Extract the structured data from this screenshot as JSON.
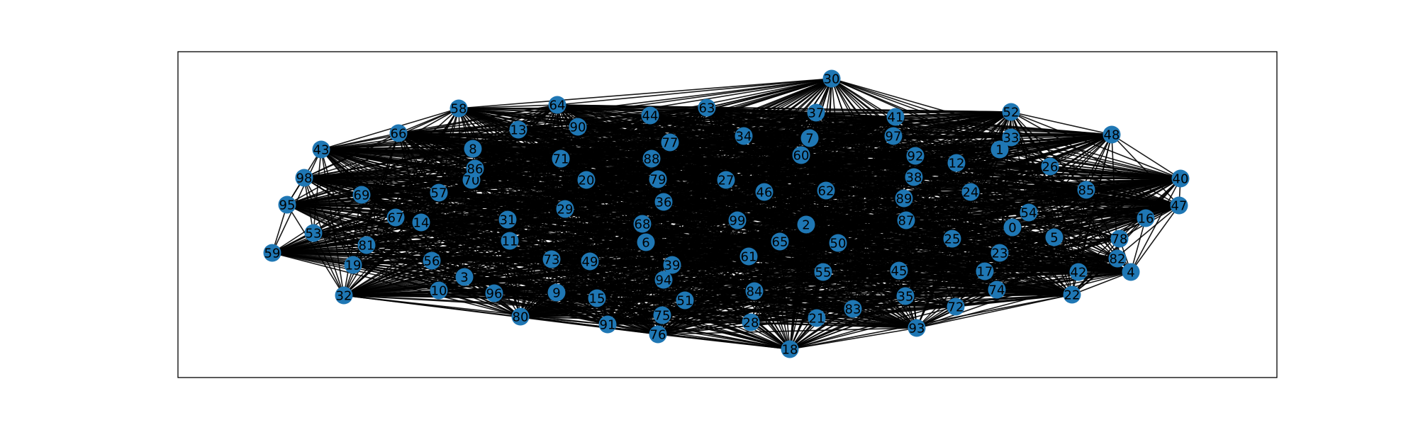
{
  "graph": {
    "type": "network",
    "node_color": "#1f77b4",
    "edge_color": "#000000",
    "label_color": "#000000",
    "nodes": [
      {
        "id": "0"
      },
      {
        "id": "1"
      },
      {
        "id": "2"
      },
      {
        "id": "3"
      },
      {
        "id": "4"
      },
      {
        "id": "5"
      },
      {
        "id": "6"
      },
      {
        "id": "7"
      },
      {
        "id": "8"
      },
      {
        "id": "9"
      },
      {
        "id": "10"
      },
      {
        "id": "11"
      },
      {
        "id": "12"
      },
      {
        "id": "13"
      },
      {
        "id": "14"
      },
      {
        "id": "15"
      },
      {
        "id": "16"
      },
      {
        "id": "17"
      },
      {
        "id": "18"
      },
      {
        "id": "19"
      },
      {
        "id": "20"
      },
      {
        "id": "21"
      },
      {
        "id": "22"
      },
      {
        "id": "23"
      },
      {
        "id": "24"
      },
      {
        "id": "25"
      },
      {
        "id": "26"
      },
      {
        "id": "27"
      },
      {
        "id": "28"
      },
      {
        "id": "29"
      },
      {
        "id": "30"
      },
      {
        "id": "31"
      },
      {
        "id": "32"
      },
      {
        "id": "33"
      },
      {
        "id": "34"
      },
      {
        "id": "35"
      },
      {
        "id": "36"
      },
      {
        "id": "37"
      },
      {
        "id": "38"
      },
      {
        "id": "39"
      },
      {
        "id": "40"
      },
      {
        "id": "41"
      },
      {
        "id": "42"
      },
      {
        "id": "43"
      },
      {
        "id": "44"
      },
      {
        "id": "45"
      },
      {
        "id": "46"
      },
      {
        "id": "47"
      },
      {
        "id": "48"
      },
      {
        "id": "49"
      },
      {
        "id": "50"
      },
      {
        "id": "51"
      },
      {
        "id": "52"
      },
      {
        "id": "53"
      },
      {
        "id": "54"
      },
      {
        "id": "55"
      },
      {
        "id": "56"
      },
      {
        "id": "57"
      },
      {
        "id": "58"
      },
      {
        "id": "59"
      },
      {
        "id": "60"
      },
      {
        "id": "61"
      },
      {
        "id": "62"
      },
      {
        "id": "63"
      },
      {
        "id": "64"
      },
      {
        "id": "65"
      },
      {
        "id": "66"
      },
      {
        "id": "67"
      },
      {
        "id": "68"
      },
      {
        "id": "69"
      },
      {
        "id": "70"
      },
      {
        "id": "71"
      },
      {
        "id": "72"
      },
      {
        "id": "73"
      },
      {
        "id": "74"
      },
      {
        "id": "75"
      },
      {
        "id": "76"
      },
      {
        "id": "77"
      },
      {
        "id": "78"
      },
      {
        "id": "79"
      },
      {
        "id": "80"
      },
      {
        "id": "81"
      },
      {
        "id": "82"
      },
      {
        "id": "83"
      },
      {
        "id": "84"
      },
      {
        "id": "85"
      },
      {
        "id": "86"
      },
      {
        "id": "87"
      },
      {
        "id": "88"
      },
      {
        "id": "89"
      },
      {
        "id": "90"
      },
      {
        "id": "91"
      },
      {
        "id": "92"
      },
      {
        "id": "93"
      },
      {
        "id": "94"
      },
      {
        "id": "95"
      },
      {
        "id": "96"
      },
      {
        "id": "97"
      },
      {
        "id": "98"
      },
      {
        "id": "99"
      }
    ]
  }
}
